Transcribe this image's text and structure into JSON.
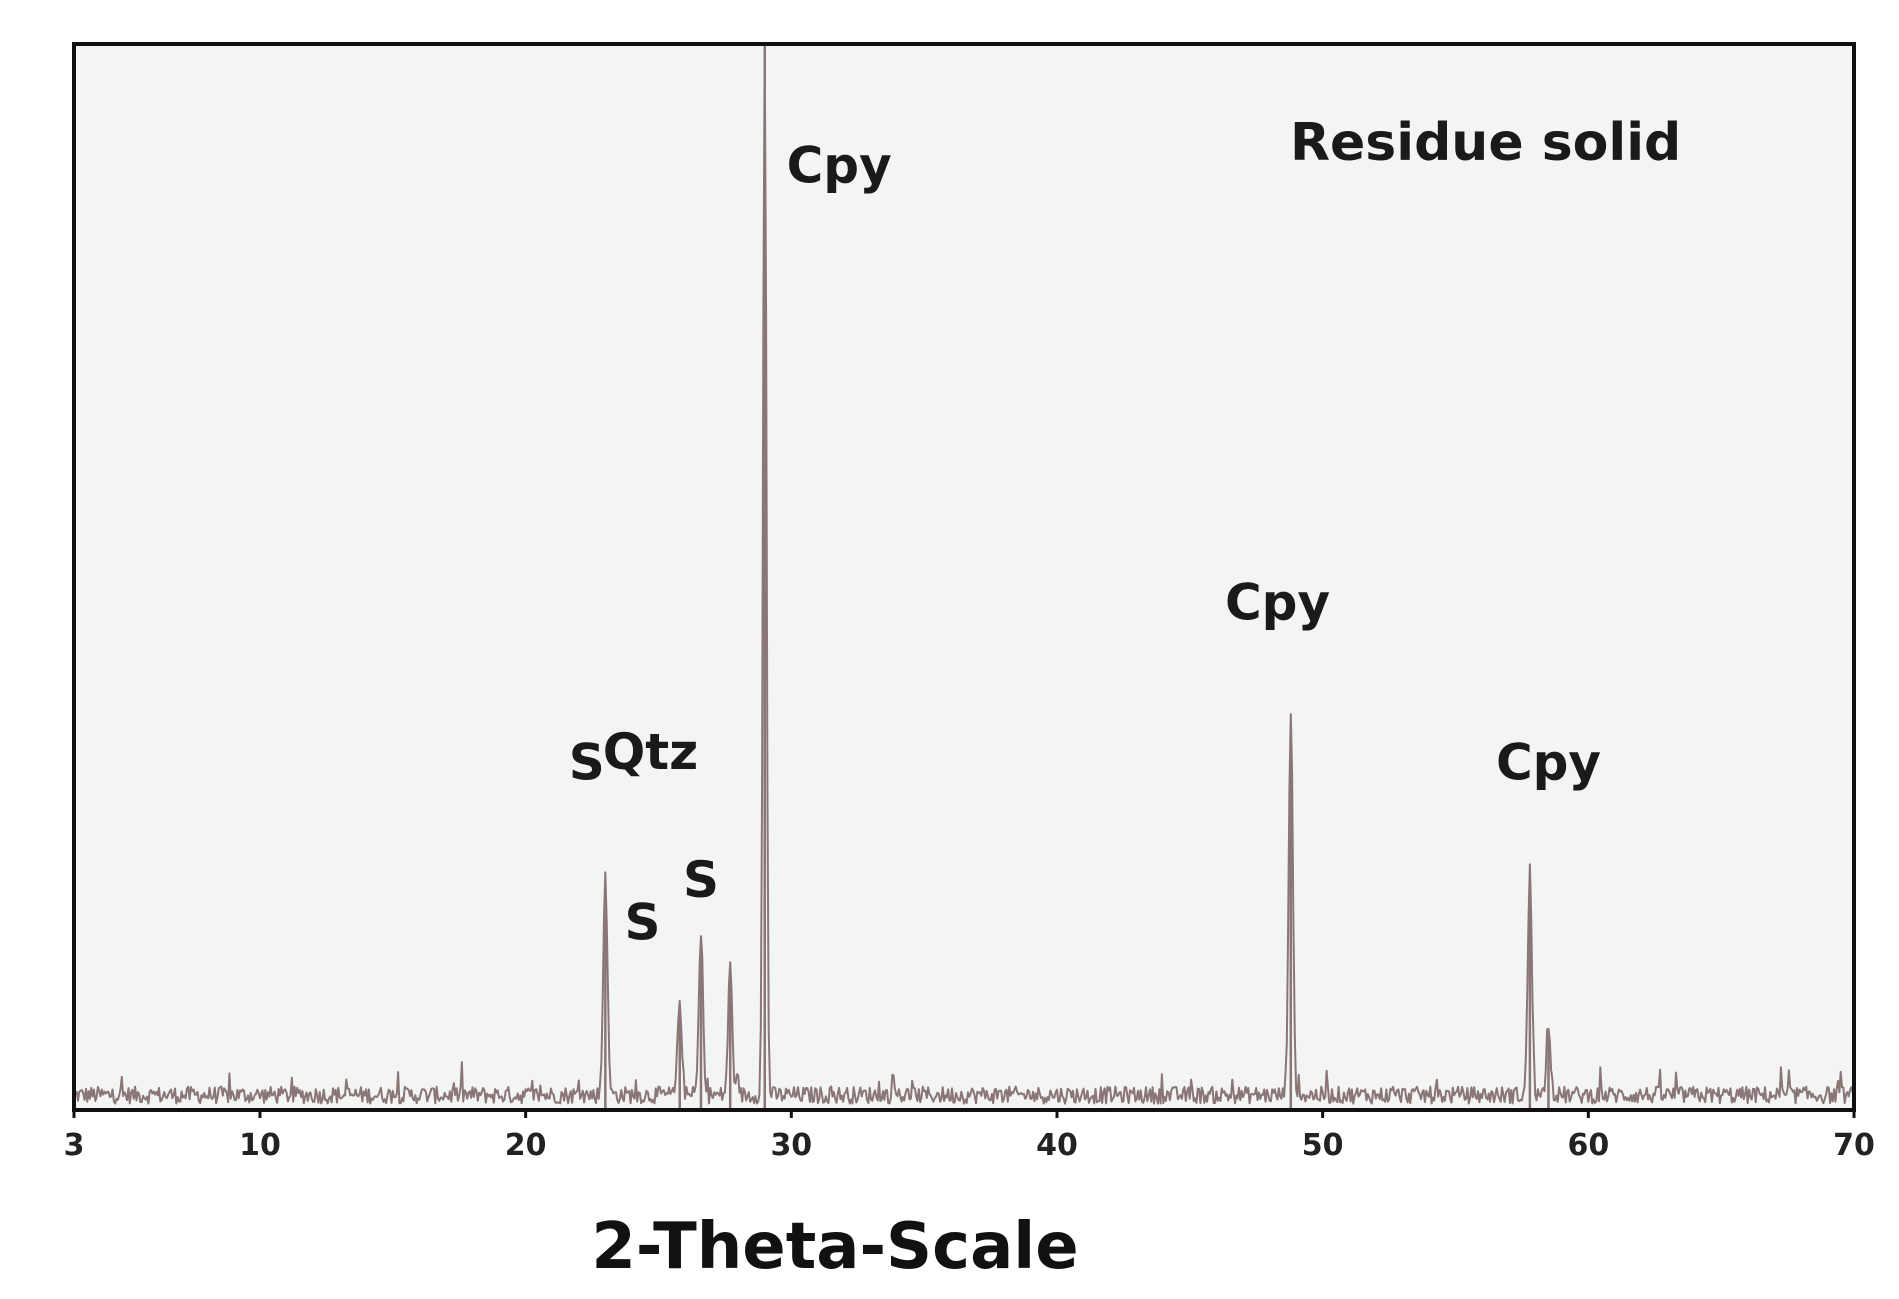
{
  "chart_data": {
    "type": "line",
    "title": "Residue solid",
    "xlabel": "2-Theta-Scale",
    "ylabel": "",
    "xlim": [
      3,
      70
    ],
    "ylim": [
      0,
      100
    ],
    "x_ticks": [
      3,
      10,
      20,
      30,
      40,
      50,
      60,
      70
    ],
    "x_tick_labels": [
      "3",
      "10",
      "20",
      "30",
      "40",
      "50",
      "60",
      "70"
    ],
    "grid": false,
    "colors": {
      "pattern": "#8a7676",
      "frame": "#111111",
      "plot_bg": "#f3f4f4"
    },
    "peaks": [
      {
        "x": 23.0,
        "y": 21
      },
      {
        "x": 25.8,
        "y": 9
      },
      {
        "x": 26.6,
        "y": 15
      },
      {
        "x": 27.7,
        "y": 12
      },
      {
        "x": 29.0,
        "y": 100
      },
      {
        "x": 48.8,
        "y": 36
      },
      {
        "x": 57.8,
        "y": 21
      },
      {
        "x": 58.5,
        "y": 7
      }
    ],
    "annotations": [
      {
        "text": "Cpy",
        "x": 31.8,
        "y": 87
      },
      {
        "text": "Cpy",
        "x": 48.3,
        "y": 46
      },
      {
        "text": "Cpy",
        "x": 58.5,
        "y": 31
      },
      {
        "text": "S",
        "x": 22.3,
        "y": 31
      },
      {
        "text": "Qtz",
        "x": 24.7,
        "y": 32
      },
      {
        "text": "S",
        "x": 24.4,
        "y": 16
      },
      {
        "text": "S",
        "x": 26.6,
        "y": 20
      }
    ]
  }
}
